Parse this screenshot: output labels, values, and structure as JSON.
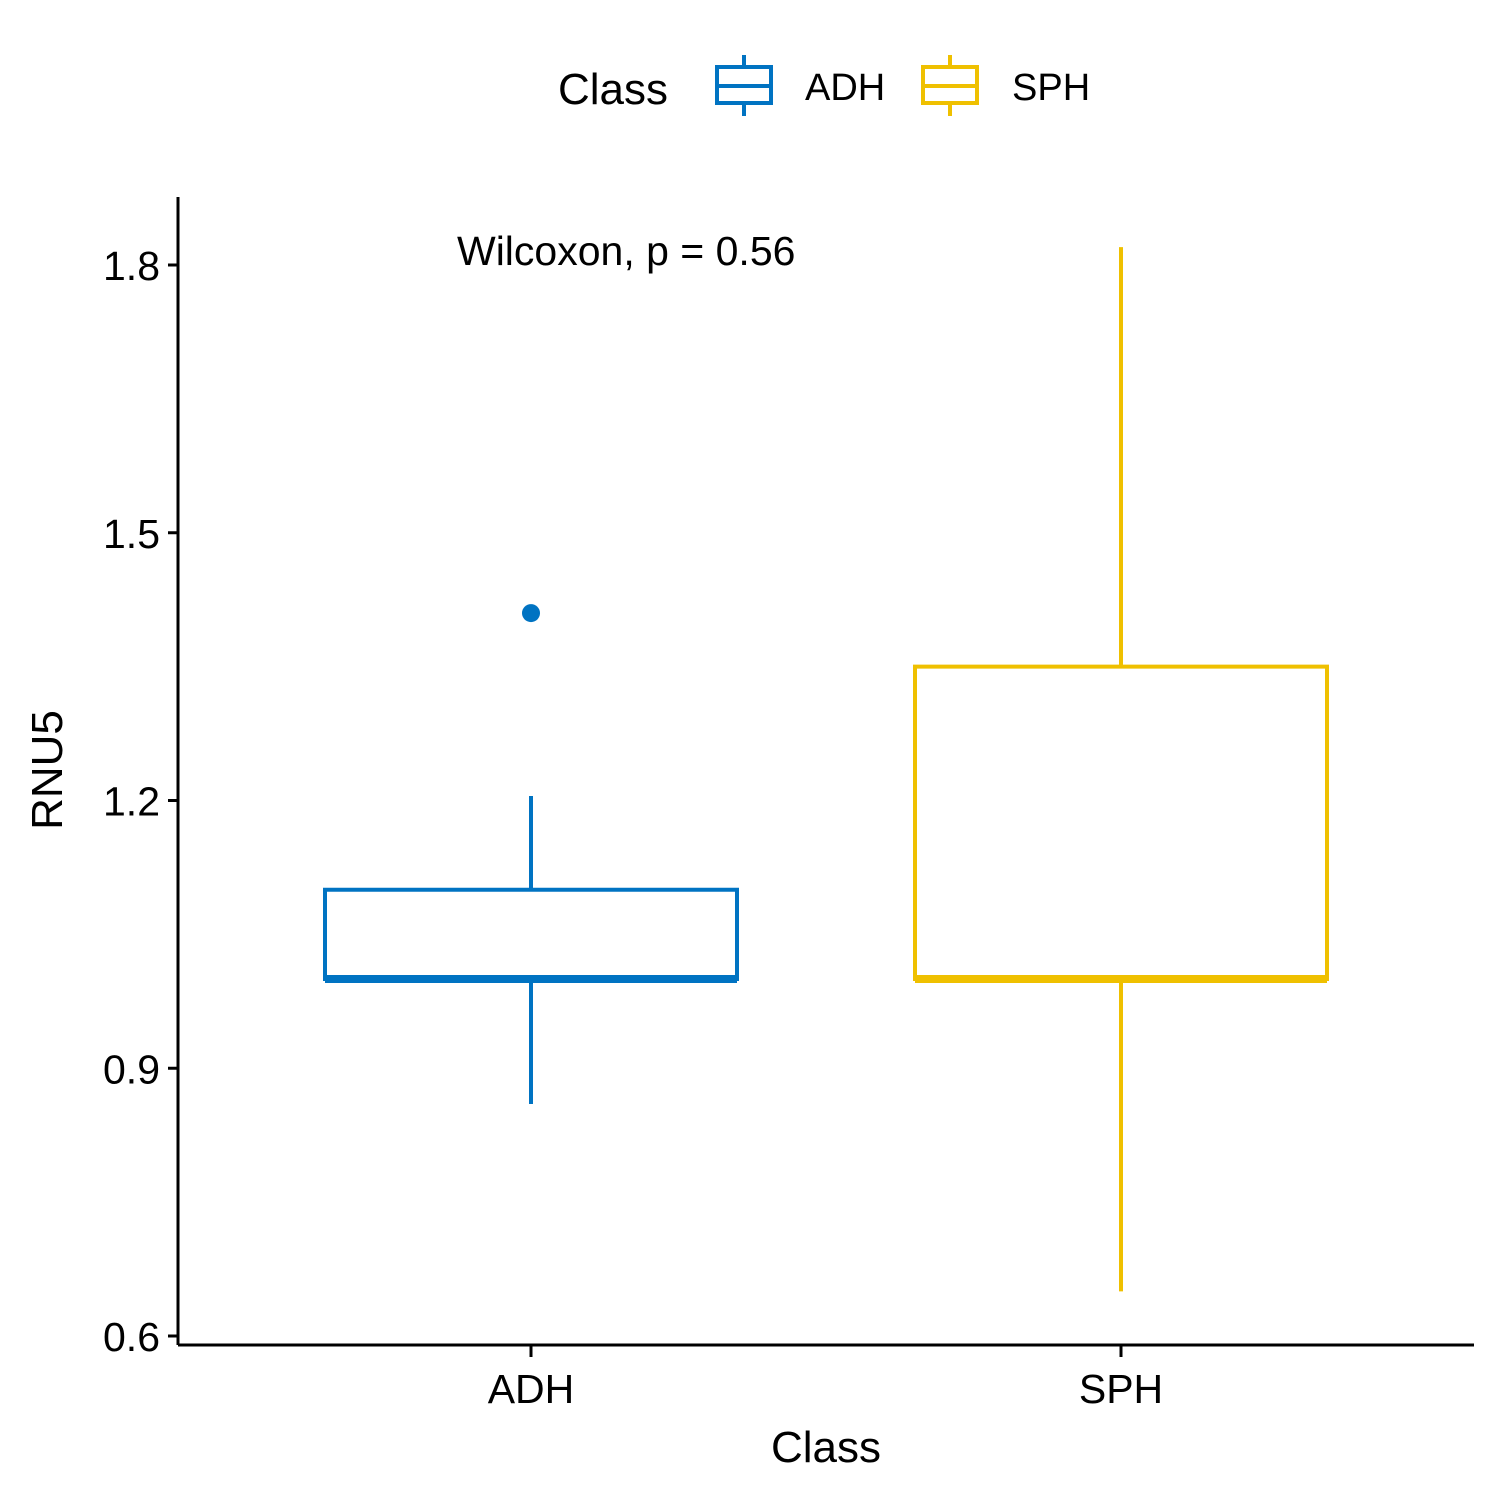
{
  "chart_data": {
    "type": "box",
    "xlabel": "Class",
    "ylabel": "RNU5",
    "ylim": [
      0.6,
      1.87
    ],
    "yticks": [
      0.6,
      0.9,
      1.2,
      1.5,
      1.8
    ],
    "ytick_labels": [
      "0.6",
      "0.9",
      "1.2",
      "1.5",
      "1.8"
    ],
    "categories": [
      "ADH",
      "SPH"
    ],
    "legend": {
      "title": "Class",
      "position": "top",
      "entries": [
        "ADH",
        "SPH"
      ]
    },
    "annotation": "Wilcoxon, p = 0.56",
    "grid": false,
    "series": [
      {
        "name": "ADH",
        "color": "#0073C2",
        "whisker_low": 0.86,
        "q1": 1.0,
        "median": 1.0,
        "q3": 1.1,
        "whisker_high": 1.205,
        "outliers": [
          1.41
        ]
      },
      {
        "name": "SPH",
        "color": "#EFC000",
        "whisker_low": 0.65,
        "q1": 1.0,
        "median": 1.0,
        "q3": 1.35,
        "whisker_high": 1.82,
        "outliers": []
      }
    ]
  }
}
